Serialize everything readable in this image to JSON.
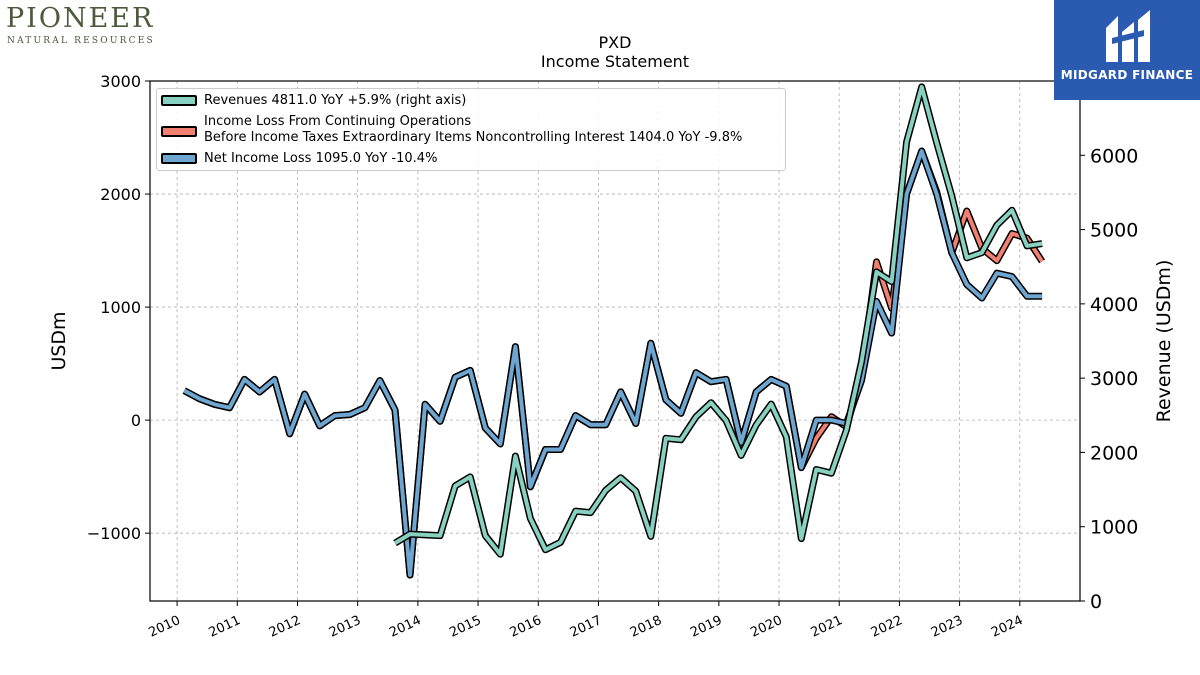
{
  "branding": {
    "left_logo": {
      "name": "PIONEER",
      "subtitle": "NATURAL RESOURCES",
      "color": "#4a5a3a"
    },
    "right_logo": {
      "name": "MIDGARD FINANCE",
      "background": "#2a5bb0"
    }
  },
  "chart_data": {
    "type": "line",
    "title": "PXD",
    "subtitle": "Income Statement",
    "ylabel": "USDm",
    "y2label": "Revenue (USDm)",
    "ylim": [
      -1600,
      3000
    ],
    "yticks": [
      -1000,
      0,
      1000,
      2000,
      3000
    ],
    "y2lim": [
      0,
      7000
    ],
    "y2ticks": [
      0,
      1000,
      2000,
      3000,
      4000,
      5000,
      6000,
      7000
    ],
    "xlim": [
      2009.55,
      2025.0
    ],
    "xticks": [
      2010,
      2011,
      2012,
      2013,
      2014,
      2015,
      2016,
      2017,
      2018,
      2019,
      2020,
      2021,
      2022,
      2023,
      2024
    ],
    "xtick_labels": [
      "2010",
      "2011",
      "2012",
      "2013",
      "2014",
      "2015",
      "2016",
      "2017",
      "2018",
      "2019",
      "2020",
      "2021",
      "2022",
      "2023",
      "2024"
    ],
    "grid": true,
    "legend_position": "top-left",
    "series": [
      {
        "name": "Revenues",
        "legend_label": "Revenues  4811.0 YoY +5.9% (right axis)",
        "color": "#88d0c0",
        "axis": "right",
        "x": [
          2013.62,
          2013.87,
          2014.12,
          2014.37,
          2014.62,
          2014.87,
          2015.12,
          2015.37,
          2015.62,
          2015.87,
          2016.12,
          2016.37,
          2016.62,
          2016.87,
          2017.12,
          2017.37,
          2017.62,
          2017.87,
          2018.12,
          2018.37,
          2018.62,
          2018.87,
          2019.12,
          2019.37,
          2019.62,
          2019.87,
          2020.12,
          2020.37,
          2020.62,
          2020.87,
          2021.12,
          2021.37,
          2021.62,
          2021.87,
          2022.12,
          2022.37,
          2022.62,
          2022.87,
          2023.12,
          2023.37,
          2023.62,
          2023.87,
          2024.12,
          2024.37
        ],
        "y": [
          780,
          900,
          890,
          880,
          1550,
          1670,
          880,
          630,
          1950,
          1110,
          690,
          790,
          1210,
          1190,
          1490,
          1660,
          1480,
          870,
          2190,
          2170,
          2480,
          2670,
          2430,
          1960,
          2370,
          2650,
          2210,
          840,
          1770,
          1720,
          2300,
          3220,
          4430,
          4300,
          6180,
          6920,
          6170,
          5450,
          4620,
          4690,
          5060,
          5260,
          4780,
          4811
        ]
      },
      {
        "name": "Income Loss From Continuing Operations Before Income Taxes Extraordinary Items Noncontrolling Interest",
        "legend_label_line1": "Income Loss From Continuing Operations",
        "legend_label_line2": "Before Income Taxes Extraordinary Items Noncontrolling Interest  1404.0 YoY -9.8%",
        "color": "#f28070",
        "axis": "left",
        "x": [
          2010.12,
          2010.37,
          2010.62,
          2010.87,
          2011.12,
          2011.37,
          2011.62,
          2011.87,
          2012.12,
          2012.37,
          2012.62,
          2012.87,
          2013.12,
          2013.37,
          2013.62,
          2013.87,
          2014.12,
          2014.37,
          2014.62,
          2014.87,
          2015.12,
          2015.37,
          2015.62,
          2015.87,
          2016.12,
          2016.37,
          2016.62,
          2016.87,
          2017.12,
          2017.37,
          2017.62,
          2017.87,
          2018.12,
          2018.37,
          2018.62,
          2018.87,
          2019.12,
          2019.37,
          2019.62,
          2019.87,
          2020.12,
          2020.37,
          2020.62,
          2020.87,
          2021.12,
          2021.37,
          2021.62,
          2021.87,
          2022.12,
          2022.37,
          2022.62,
          2022.87,
          2023.12,
          2023.37,
          2023.62,
          2023.87,
          2024.12,
          2024.37
        ],
        "y": [
          260,
          190,
          140,
          110,
          360,
          250,
          360,
          -120,
          230,
          -50,
          40,
          50,
          110,
          350,
          90,
          -1370,
          140,
          -10,
          380,
          440,
          -70,
          -210,
          650,
          -590,
          -260,
          -260,
          40,
          -40,
          -40,
          250,
          -30,
          680,
          180,
          60,
          420,
          340,
          360,
          -200,
          250,
          360,
          300,
          -420,
          -160,
          30,
          -60,
          400,
          1400,
          990,
          2000,
          2380,
          2020,
          1480,
          1850,
          1520,
          1410,
          1650,
          1610,
          1404
        ]
      },
      {
        "name": "Net Income Loss",
        "legend_label": "Net Income Loss  1095.0 YoY -10.4%",
        "color": "#6fa6d0",
        "axis": "left",
        "x": [
          2010.12,
          2010.37,
          2010.62,
          2010.87,
          2011.12,
          2011.37,
          2011.62,
          2011.87,
          2012.12,
          2012.37,
          2012.62,
          2012.87,
          2013.12,
          2013.37,
          2013.62,
          2013.87,
          2014.12,
          2014.37,
          2014.62,
          2014.87,
          2015.12,
          2015.37,
          2015.62,
          2015.87,
          2016.12,
          2016.37,
          2016.62,
          2016.87,
          2017.12,
          2017.37,
          2017.62,
          2017.87,
          2018.12,
          2018.37,
          2018.62,
          2018.87,
          2019.12,
          2019.37,
          2019.62,
          2019.87,
          2020.12,
          2020.37,
          2020.62,
          2020.87,
          2021.12,
          2021.37,
          2021.62,
          2021.87,
          2022.12,
          2022.37,
          2022.62,
          2022.87,
          2023.12,
          2023.37,
          2023.62,
          2023.87,
          2024.12,
          2024.37
        ],
        "y": [
          260,
          190,
          140,
          110,
          360,
          250,
          360,
          -120,
          230,
          -50,
          40,
          50,
          110,
          350,
          90,
          -1370,
          140,
          -10,
          380,
          440,
          -70,
          -210,
          650,
          -590,
          -260,
          -260,
          40,
          -40,
          -40,
          250,
          -30,
          680,
          180,
          60,
          420,
          340,
          360,
          -200,
          250,
          360,
          300,
          -420,
          0,
          0,
          -30,
          350,
          1050,
          770,
          2000,
          2380,
          2000,
          1480,
          1200,
          1080,
          1300,
          1270,
          1095,
          1095
        ]
      }
    ]
  }
}
